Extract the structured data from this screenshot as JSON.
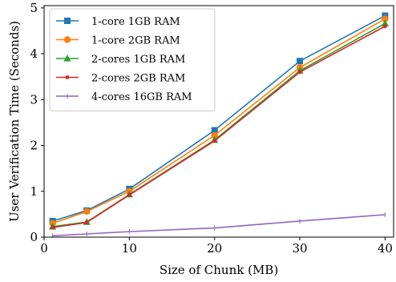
{
  "chart_data": {
    "type": "line",
    "title": "",
    "xlabel": "Size of Chunk (MB)",
    "ylabel": "User Verification Time (Seconds)",
    "xlim": [
      0,
      41
    ],
    "ylim": [
      0,
      5.05
    ],
    "xticks": [
      0,
      10,
      20,
      30,
      40
    ],
    "yticks": [
      0,
      1,
      2,
      3,
      4,
      5
    ],
    "grid": false,
    "legend_position": "top-left",
    "x": [
      1,
      5,
      10,
      20,
      30,
      40
    ],
    "series": [
      {
        "name": "1-core 1GB RAM",
        "color": "#1f77b4",
        "marker": "square",
        "values": [
          0.35,
          0.58,
          1.05,
          2.33,
          3.84,
          4.83
        ]
      },
      {
        "name": "1-core 2GB RAM",
        "color": "#ff7f0e",
        "marker": "circle",
        "values": [
          0.3,
          0.56,
          1.0,
          2.22,
          3.7,
          4.76
        ]
      },
      {
        "name": "2-cores 1GB RAM",
        "color": "#2ca02c",
        "marker": "triangle",
        "values": [
          0.23,
          0.33,
          0.93,
          2.12,
          3.63,
          4.66
        ]
      },
      {
        "name": "2-cores 2GB RAM",
        "color": "#d62728",
        "marker": "dot",
        "values": [
          0.21,
          0.32,
          0.92,
          2.1,
          3.6,
          4.6
        ]
      },
      {
        "name": "4-cores 16GB RAM",
        "color": "#9467bd",
        "marker": "tick",
        "values": [
          0.03,
          0.07,
          0.12,
          0.2,
          0.35,
          0.49
        ]
      }
    ]
  }
}
